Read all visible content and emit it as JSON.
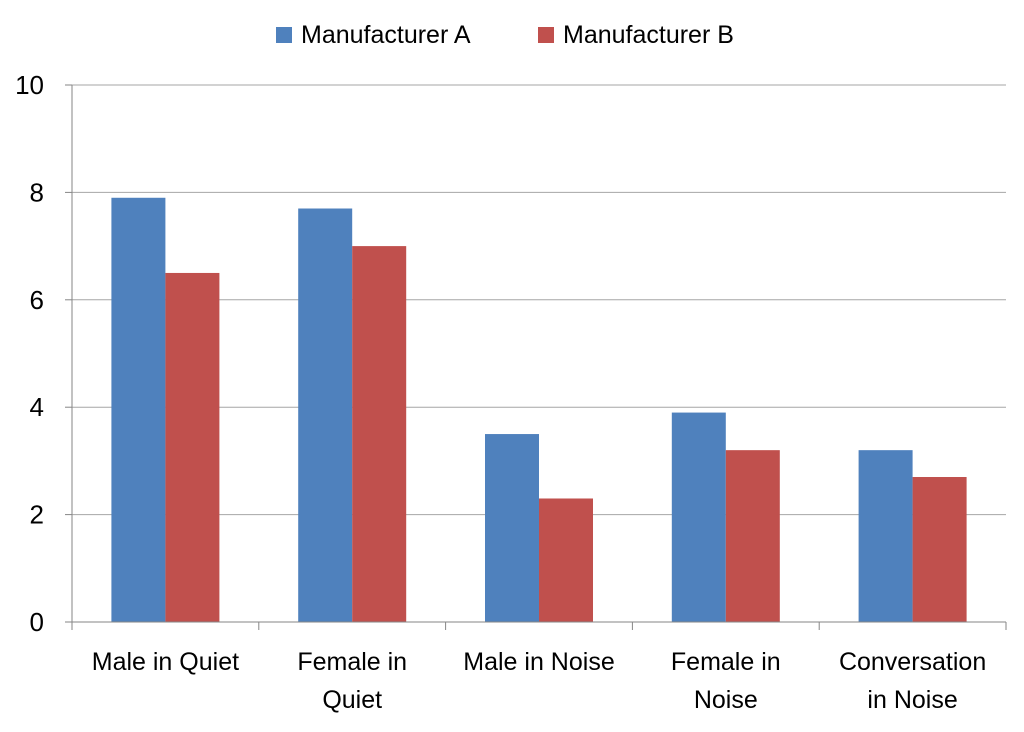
{
  "chart_data": {
    "type": "bar",
    "categories": [
      [
        "Male in Quiet"
      ],
      [
        "Female in",
        "Quiet"
      ],
      [
        "Male in Noise"
      ],
      [
        "Female in",
        "Noise"
      ],
      [
        "Conversation",
        "in Noise"
      ]
    ],
    "series": [
      {
        "name": "Manufacturer A",
        "color": "#4F81BD",
        "values": [
          7.9,
          7.7,
          3.5,
          3.9,
          3.2
        ]
      },
      {
        "name": "Manufacturer B",
        "color": "#C0504D",
        "values": [
          6.5,
          7.0,
          2.3,
          3.2,
          2.7
        ]
      }
    ],
    "y_ticks": [
      "0",
      "2",
      "4",
      "6",
      "8",
      "10"
    ],
    "ylim": [
      0,
      10
    ],
    "grid": true,
    "legend_position": "top-center",
    "gridline_color": "#A6A6A6",
    "axis_color": "#868686"
  }
}
